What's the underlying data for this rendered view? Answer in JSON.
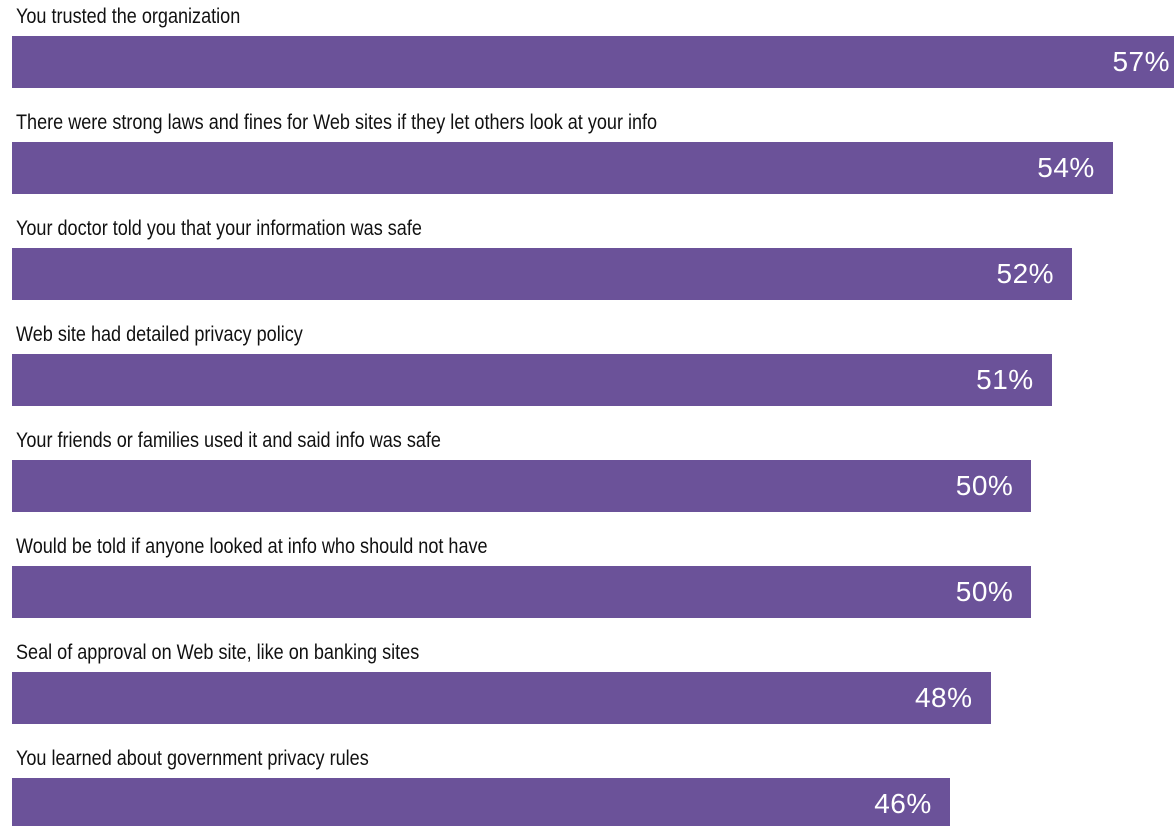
{
  "chart_data": {
    "type": "bar",
    "orientation": "horizontal",
    "categories": [
      "You trusted the organization",
      "There were strong laws and fines for Web sites if they let others look at your info",
      "Your doctor told you that your information was safe",
      "Web site had detailed privacy policy",
      "Your friends or families used it and said info was safe",
      "Would be told if anyone looked at info who should not have",
      "Seal of approval on Web site, like on banking sites",
      "You learned about government privacy rules"
    ],
    "values": [
      57,
      54,
      52,
      51,
      50,
      50,
      48,
      46
    ],
    "data_labels": [
      "57%",
      "54%",
      "52%",
      "51%",
      "50%",
      "50%",
      "48%",
      "46%"
    ],
    "title": "",
    "xlabel": "",
    "ylabel": "",
    "unit": "%",
    "grid": false,
    "legend": "none",
    "colors": {
      "bar": "#6b5299",
      "value_text": "#ffffff",
      "label_text": "#111111",
      "background": "#ffffff"
    }
  }
}
